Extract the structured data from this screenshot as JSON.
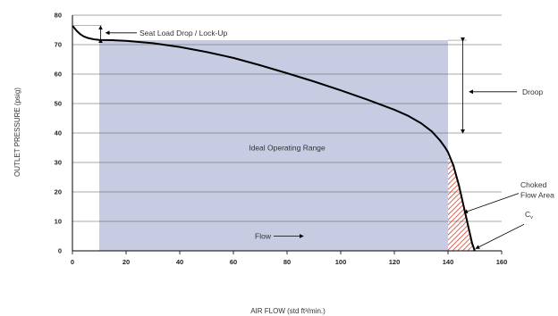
{
  "chart_data": {
    "type": "line",
    "title": "",
    "xlabel": "AIR FLOW (std ft³/min.)",
    "ylabel": "OUTLET PRESSURE (psig)",
    "xlim": [
      0,
      160
    ],
    "ylim": [
      0,
      80
    ],
    "x_ticks": [
      "0",
      "20",
      "40",
      "60",
      "80",
      "100",
      "120",
      "140",
      "160"
    ],
    "y_ticks": [
      "0",
      "10",
      "20",
      "30",
      "40",
      "50",
      "60",
      "70",
      "80"
    ],
    "grid": "horizontal",
    "legend": "none",
    "series": [
      {
        "x": [
          0,
          1,
          2,
          3,
          4,
          5,
          6,
          7,
          8,
          9,
          10,
          15,
          20,
          30,
          40,
          50,
          60,
          70,
          80,
          90,
          100,
          110,
          120,
          125,
          130,
          134,
          137,
          139,
          140,
          142,
          144,
          146,
          148,
          149,
          150
        ],
        "y": [
          76.5,
          75.3,
          74.3,
          73.5,
          72.9,
          72.5,
          72.2,
          72.0,
          71.8,
          71.7,
          71.6,
          71.5,
          71.3,
          70.5,
          69.2,
          67.5,
          65.5,
          63.0,
          60.3,
          57.5,
          54.5,
          51.3,
          47.9,
          45.9,
          43.3,
          40.5,
          37.5,
          35.0,
          33.5,
          29.0,
          22.5,
          14.5,
          6.5,
          2.5,
          0
        ]
      }
    ],
    "regions": [
      {
        "label": "Ideal Operating Range",
        "x": [
          10,
          140
        ],
        "y": [
          0,
          71.5
        ]
      },
      {
        "label": "Choked Flow Area",
        "x": [
          140,
          150
        ]
      }
    ],
    "annotations": {
      "seat_load": "Seat Load Drop / Lock-Up",
      "droop": "Droop",
      "choked": [
        "Choked",
        "Flow Area"
      ],
      "flow": "Flow",
      "cv": "C",
      "cv_sub": "v"
    },
    "colors": {
      "range_fill": "#c7cce3",
      "curve": "#000000",
      "hatch": "#d9402a",
      "grid": "#555555"
    }
  }
}
